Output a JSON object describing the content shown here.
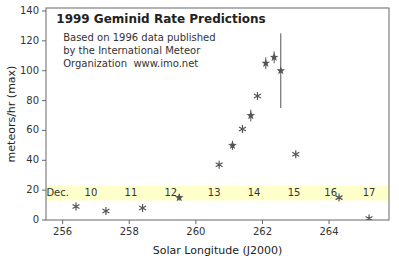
{
  "chart_data": {
    "type": "scatter",
    "title": "1999 Geminid Rate Predictions",
    "subtitle": [
      "Based on 1996 data published",
      "by the International Meteor",
      "Organization  www.imo.net"
    ],
    "xlabel": "Solar Longitude (J2000)",
    "ylabel": "meteors/hr (max)",
    "xlim": [
      255.5,
      265.8
    ],
    "ylim": [
      0,
      142
    ],
    "xticks": [
      256,
      258,
      260,
      262,
      264
    ],
    "yticks": [
      0,
      20,
      40,
      60,
      80,
      100,
      120,
      140
    ],
    "background_color": "#ffffff",
    "plot_background_color": "#ffffff",
    "highlight_band": {
      "from": 13,
      "to": 23,
      "color": "#ffffcc"
    },
    "series": [
      {
        "color": "#555555",
        "x": [
          256.4,
          257.3,
          258.4,
          259.5,
          260.7,
          261.1,
          261.4,
          261.65,
          261.85,
          262.1,
          262.35,
          262.55,
          263.0,
          264.3,
          265.2
        ],
        "values": [
          9,
          6,
          8,
          15,
          37,
          50,
          61,
          70,
          83,
          105,
          109,
          100,
          44,
          15,
          1
        ],
        "error_low": [
          0,
          0,
          0,
          2,
          0,
          3,
          0,
          4,
          0,
          4,
          4,
          25,
          0,
          0,
          0
        ],
        "error_high": [
          0,
          0,
          0,
          2,
          0,
          3,
          0,
          4,
          0,
          4,
          4,
          25,
          0,
          0,
          0
        ]
      }
    ],
    "annotation_color": "#333333",
    "annotations": [
      {
        "text": "Dec.",
        "x": 255.85,
        "y": 18
      },
      {
        "text": "10",
        "x": 256.85,
        "y": 18
      },
      {
        "text": "11",
        "x": 258.05,
        "y": 18
      },
      {
        "text": "12",
        "x": 259.25,
        "y": 18
      },
      {
        "text": "13",
        "x": 260.55,
        "y": 18
      },
      {
        "text": "14",
        "x": 261.75,
        "y": 18
      },
      {
        "text": "15",
        "x": 262.95,
        "y": 18
      },
      {
        "text": "16",
        "x": 264.05,
        "y": 18
      },
      {
        "text": "17",
        "x": 265.2,
        "y": 18
      }
    ]
  }
}
